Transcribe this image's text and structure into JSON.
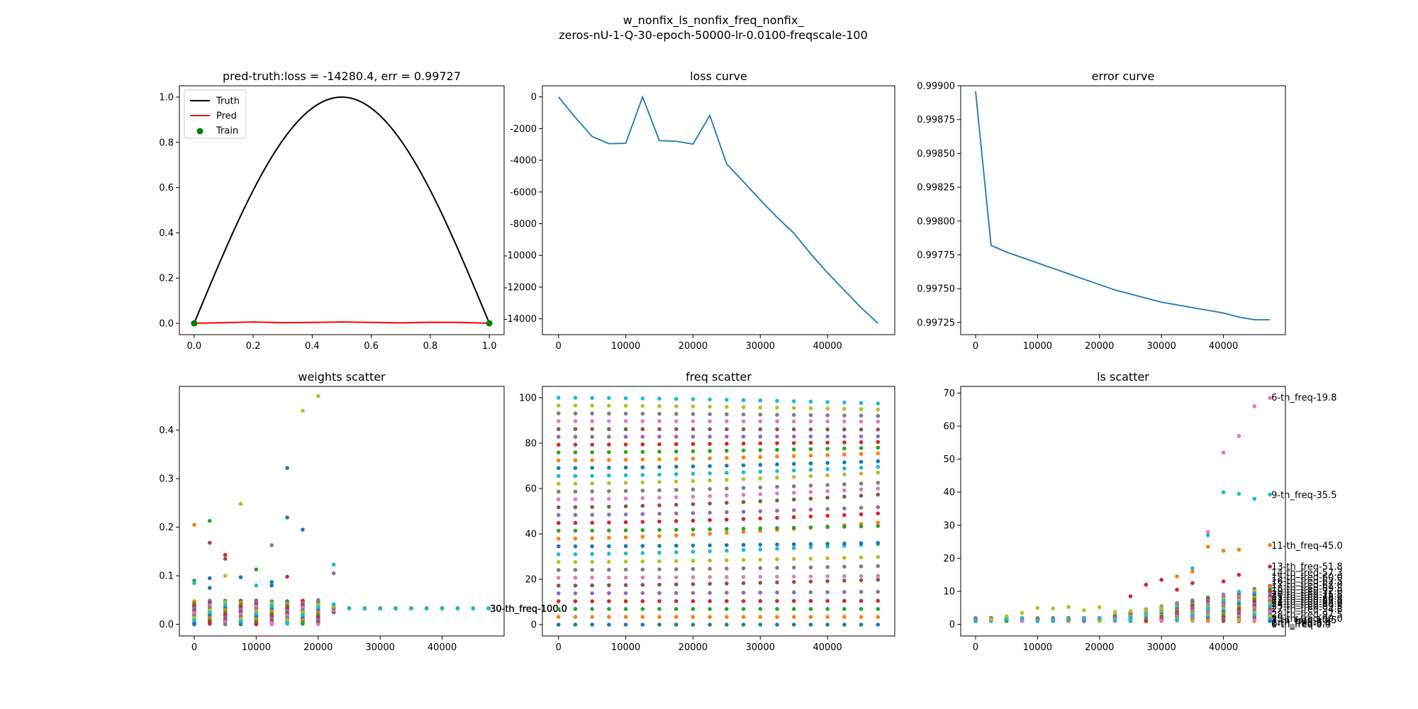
{
  "figure": {
    "title_line1": "w_nonfix_ls_nonfix_freq_nonfix_",
    "title_line2": "zeros-nU-1-Q-30-epoch-50000-lr-0.0100-freqscale-100"
  },
  "chart_data": [
    {
      "id": "pred",
      "type": "line",
      "title": "pred-truth:loss = -14280.4, err = 0.99727",
      "xlim": [
        -0.05,
        1.05
      ],
      "ylim": [
        -0.05,
        1.05
      ],
      "xticks": [
        0.0,
        0.2,
        0.4,
        0.6,
        0.8,
        1.0
      ],
      "yticks": [
        0.0,
        0.2,
        0.4,
        0.6,
        0.8,
        1.0
      ],
      "tick_format": "1f",
      "legend": [
        "Truth",
        "Pred",
        "Train"
      ],
      "legend_position": "upper-left",
      "series": [
        {
          "name": "Truth",
          "color": "#000000",
          "kind": "curve",
          "formula": "sin(pi*x)"
        },
        {
          "name": "Pred",
          "color": "#ff0000",
          "kind": "line",
          "x": [
            0,
            0.1,
            0.2,
            0.3,
            0.4,
            0.5,
            0.6,
            0.7,
            0.8,
            0.9,
            1.0
          ],
          "y": [
            0,
            0.003,
            0.006,
            0.003,
            0.004,
            0.006,
            0.004,
            0.002,
            0.005,
            0.004,
            0
          ]
        },
        {
          "name": "Train",
          "color": "#008000",
          "kind": "scatter",
          "x": [
            0,
            1
          ],
          "y": [
            0,
            0
          ]
        }
      ]
    },
    {
      "id": "loss",
      "type": "line",
      "title": "loss curve",
      "xlim": [
        -2400,
        50000
      ],
      "ylim": [
        -15000,
        700
      ],
      "xticks": [
        0,
        10000,
        20000,
        30000,
        40000
      ],
      "yticks": [
        0,
        -2000,
        -4000,
        -6000,
        -8000,
        -10000,
        -12000,
        -14000
      ],
      "tick_format": "0f",
      "series": [
        {
          "color": "#1f77b4",
          "x": [
            0,
            2500,
            5000,
            7500,
            10000,
            12500,
            15000,
            17500,
            20000,
            22500,
            25000,
            27500,
            30000,
            32500,
            35000,
            37500,
            40000,
            42500,
            45000,
            47500
          ],
          "y": [
            0,
            -1300,
            -2500,
            -2950,
            -2930,
            -10,
            -2760,
            -2800,
            -2980,
            -1170,
            -4230,
            -5350,
            -6500,
            -7600,
            -8600,
            -9900,
            -11100,
            -12200,
            -13300,
            -14280
          ]
        }
      ]
    },
    {
      "id": "error",
      "type": "line",
      "title": "error curve",
      "xlim": [
        -2400,
        50000
      ],
      "ylim": [
        0.99716,
        0.999
      ],
      "xticks": [
        0,
        10000,
        20000,
        30000,
        40000
      ],
      "yticks": [
        0.99725,
        0.9975,
        0.99775,
        0.998,
        0.99825,
        0.9985,
        0.99875,
        0.999
      ],
      "tick_format": "5f",
      "series": [
        {
          "color": "#1f77b4",
          "x": [
            0,
            2500,
            5000,
            7500,
            10000,
            12500,
            15000,
            17500,
            20000,
            22500,
            25000,
            27500,
            30000,
            32500,
            35000,
            37500,
            40000,
            42500,
            45000,
            47500
          ],
          "y": [
            0.99896,
            0.99782,
            0.99777,
            0.99773,
            0.99769,
            0.99765,
            0.99761,
            0.99757,
            0.99753,
            0.99749,
            0.99746,
            0.99743,
            0.9974,
            0.99738,
            0.99736,
            0.99734,
            0.99732,
            0.99729,
            0.99727,
            0.99727
          ]
        }
      ]
    },
    {
      "id": "weights",
      "type": "scatter",
      "title": "weights scatter",
      "xlim": [
        -2400,
        50000
      ],
      "ylim": [
        -0.024,
        0.49
      ],
      "xticks": [
        0,
        10000,
        20000,
        30000,
        40000
      ],
      "yticks": [
        0.0,
        0.1,
        0.2,
        0.3,
        0.4
      ],
      "tick_format": "1f",
      "epochs": [
        0,
        2500,
        5000,
        7500,
        10000,
        12500,
        15000,
        17500,
        20000,
        22500,
        25000,
        27500,
        30000,
        32500,
        35000,
        37500,
        40000,
        42500,
        45000,
        47500
      ],
      "highlights": [
        {
          "x": 0,
          "y": 0.205,
          "color": "#ff7f0e"
        },
        {
          "x": 0,
          "y": 0.09,
          "color": "#2ca02c"
        },
        {
          "x": 0,
          "y": 0.085,
          "color": "#17becf"
        },
        {
          "x": 2500,
          "y": 0.213,
          "color": "#2ca02c"
        },
        {
          "x": 2500,
          "y": 0.168,
          "color": "#8c564b"
        },
        {
          "x": 2500,
          "y": 0.095,
          "color": "#1f77b4"
        },
        {
          "x": 2500,
          "y": 0.075,
          "color": "#1f77b4"
        },
        {
          "x": 5000,
          "y": 0.143,
          "color": "#d62728"
        },
        {
          "x": 5000,
          "y": 0.135,
          "color": "#8c564b"
        },
        {
          "x": 5000,
          "y": 0.1,
          "color": "#bcbd22"
        },
        {
          "x": 7500,
          "y": 0.248,
          "color": "#bcbd22"
        },
        {
          "x": 7500,
          "y": 0.097,
          "color": "#1f77b4"
        },
        {
          "x": 10000,
          "y": 0.113,
          "color": "#2ca02c"
        },
        {
          "x": 10000,
          "y": 0.08,
          "color": "#17becf"
        },
        {
          "x": 12500,
          "y": 0.163,
          "color": "#7f7f7f"
        },
        {
          "x": 12500,
          "y": 0.087,
          "color": "#1f77b4"
        },
        {
          "x": 12500,
          "y": 0.08,
          "color": "#1f77b4"
        },
        {
          "x": 15000,
          "y": 0.322,
          "color": "#1f77b4"
        },
        {
          "x": 15000,
          "y": 0.22,
          "color": "#1f77b4"
        },
        {
          "x": 15000,
          "y": 0.098,
          "color": "#d62728"
        },
        {
          "x": 17500,
          "y": 0.44,
          "color": "#bcbd22"
        },
        {
          "x": 17500,
          "y": 0.195,
          "color": "#1f77b4"
        },
        {
          "x": 20000,
          "y": 0.47,
          "color": "#bcbd22"
        },
        {
          "x": 20000,
          "y": 0.05,
          "color": "#7f7f7f"
        },
        {
          "x": 22500,
          "y": 0.123,
          "color": "#17becf"
        },
        {
          "x": 22500,
          "y": 0.105,
          "color": "#9467bd"
        }
      ],
      "converged_value": 0.033,
      "label_text": "30-th_freq-100.0"
    },
    {
      "id": "freq",
      "type": "scatter",
      "title": "freq scatter",
      "xlim": [
        -2400,
        50000
      ],
      "ylim": [
        -5,
        105
      ],
      "xticks": [
        0,
        10000,
        20000,
        30000,
        40000
      ],
      "yticks": [
        0,
        20,
        40,
        60,
        80,
        100
      ],
      "tick_format": "0f",
      "epochs": [
        0,
        2500,
        5000,
        7500,
        10000,
        12500,
        15000,
        17500,
        20000,
        22500,
        25000,
        27500,
        30000,
        32500,
        35000,
        37500,
        40000,
        42500,
        45000,
        47500
      ],
      "initial_values": [
        0,
        3.4,
        6.9,
        10.3,
        13.8,
        17.2,
        20.7,
        24.1,
        27.6,
        31.0,
        34.5,
        37.9,
        41.4,
        44.8,
        48.3,
        51.7,
        55.2,
        58.6,
        62.1,
        65.5,
        69.0,
        72.4,
        75.9,
        79.3,
        82.8,
        86.2,
        89.7,
        93.1,
        96.6,
        100.0
      ],
      "final_values": [
        0,
        3.4,
        6.9,
        10.5,
        14.5,
        19.8,
        21.5,
        25.8,
        29.8,
        35.5,
        36.0,
        45.0,
        43.5,
        49.0,
        51.8,
        57.3,
        60.0,
        62.5,
        67.0,
        69.5,
        72.0,
        75.5,
        78.0,
        80.5,
        83.0,
        86.0,
        89.5,
        92.0,
        94.8,
        97.5
      ]
    },
    {
      "id": "ls",
      "type": "scatter",
      "title": "ls scatter",
      "xlim": [
        -2400,
        50000
      ],
      "ylim": [
        -3.5,
        72
      ],
      "xticks": [
        0,
        10000,
        20000,
        30000,
        40000
      ],
      "yticks": [
        0,
        10,
        20,
        30,
        40,
        50,
        60,
        70
      ],
      "tick_format": "0f",
      "epochs": [
        0,
        2500,
        5000,
        7500,
        10000,
        12500,
        15000,
        17500,
        20000,
        22500,
        25000,
        27500,
        30000,
        32500,
        35000,
        37500,
        40000,
        42500,
        45000,
        47500
      ],
      "highlights": [
        {
          "color": "#e377c2",
          "points": [
            [
              37500,
              28
            ],
            [
              40000,
              52
            ],
            [
              42500,
              57
            ],
            [
              45000,
              66
            ],
            [
              47500,
              68.5
            ]
          ]
        },
        {
          "color": "#17becf",
          "points": [
            [
              35000,
              17
            ],
            [
              37500,
              27
            ],
            [
              40000,
              40
            ],
            [
              42500,
              39.5
            ],
            [
              45000,
              38
            ],
            [
              47500,
              39.3
            ]
          ]
        },
        {
          "color": "#ff7f0e",
          "points": [
            [
              32500,
              14.5
            ],
            [
              35000,
              16
            ],
            [
              37500,
              23.5
            ],
            [
              40000,
              22.3
            ],
            [
              42500,
              22.6
            ],
            [
              47500,
              24
            ]
          ]
        },
        {
          "color": "#d62728",
          "points": [
            [
              25000,
              8.5
            ],
            [
              27500,
              12
            ],
            [
              30000,
              13.5
            ],
            [
              32500,
              10.5
            ],
            [
              35000,
              12.5
            ],
            [
              40000,
              13
            ],
            [
              42500,
              15
            ],
            [
              47500,
              17.5
            ]
          ]
        },
        {
          "color": "#bcbd22",
          "points": [
            [
              2500,
              1.5
            ],
            [
              5000,
              2.5
            ],
            [
              7500,
              3.5
            ],
            [
              10000,
              5
            ],
            [
              12500,
              4.8
            ],
            [
              15000,
              5.3
            ],
            [
              17500,
              4.3
            ],
            [
              20000,
              5.2
            ],
            [
              22500,
              3.8
            ],
            [
              25000,
              4
            ],
            [
              27500,
              4.3
            ],
            [
              30000,
              4.8
            ]
          ]
        }
      ],
      "labels": [
        {
          "text": "6-th_freq-19.8",
          "y": 68.8
        },
        {
          "text": "9-th_freq-35.5",
          "y": 39.3
        },
        {
          "text": "11-th_freq-45.0",
          "y": 24.0
        },
        {
          "text": "13-th_freq-51.8",
          "y": 17.6
        },
        {
          "text": "14-th_freq-57.3",
          "y": 15.8
        },
        {
          "text": "15-th_freq-60.0",
          "y": 14.4
        },
        {
          "text": "16-th_freq-62.5",
          "y": 13.2
        },
        {
          "text": "17-th_freq-67.0",
          "y": 12.1
        },
        {
          "text": "18-th_freq-69.5",
          "y": 11.0
        },
        {
          "text": "19-th_freq-72.0",
          "y": 10.1
        },
        {
          "text": "20-th_freq-75.5",
          "y": 9.3
        },
        {
          "text": "21-th_freq-78.0",
          "y": 8.5
        },
        {
          "text": "22-th_freq-80.5",
          "y": 7.8
        },
        {
          "text": "23-th_freq-83.0",
          "y": 7.1
        },
        {
          "text": "24-th_freq-86.0",
          "y": 6.4
        },
        {
          "text": "25-th_freq-89.5",
          "y": 5.6
        },
        {
          "text": "27-th_freq-94.8",
          "y": 4.8
        },
        {
          "text": "28-th_freq-97.5",
          "y": 3.1
        },
        {
          "text": "29-th_freq-99.0",
          "y": 1.9
        },
        {
          "text": "3-th_freq-10.5",
          "y": 1.4
        },
        {
          "text": "2-th_freq-6.9",
          "y": 0.9
        },
        {
          "text": "1-th_freq-3.4",
          "y": 0.5
        },
        {
          "text": "0-th_freq-0.0",
          "y": 0.1
        }
      ]
    }
  ]
}
